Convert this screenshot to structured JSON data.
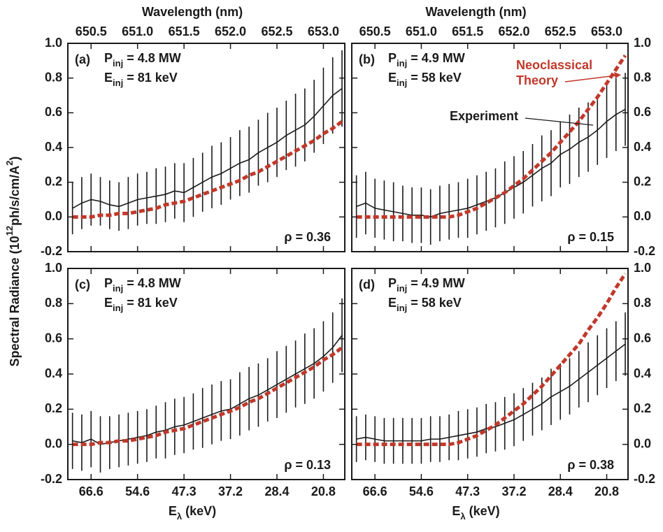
{
  "chart_data": [
    {
      "type": "line",
      "panel_label": "(a)",
      "ylabel": {
        "main": "Spectral Radiance (10",
        "sup1": "12",
        "mid": "ph/s/cm/A",
        "sup2": "2",
        "end": ")"
      },
      "xlabel": "Wavelength (nm)",
      "x_tick_side": "top",
      "y_tick_side": "left",
      "annotations": [
        {
          "main": "P",
          "sub": "inj",
          "rest": " = 4.8 MW"
        },
        {
          "main": "E",
          "sub": "inj",
          "rest": " = 81 keV"
        }
      ],
      "rho": "ρ = 0.36",
      "xlim": [
        650.25,
        653.23
      ],
      "ylim": [
        -0.2,
        1.0
      ],
      "xticks": [
        650.5,
        {
          "value": 651,
          "label": "651.0"
        },
        651.5,
        {
          "value": 652,
          "label": "652.0"
        },
        652.5,
        {
          "value": 653,
          "label": "653.0"
        }
      ],
      "yticks": [
        -0.2,
        {
          "value": 0,
          "label": "0.0"
        },
        0.2,
        0.4,
        0.6,
        0.8,
        {
          "value": 1,
          "label": "1.0"
        }
      ],
      "x": [
        650.3,
        650.4,
        650.5,
        650.6,
        650.7,
        650.8,
        650.9,
        651.0,
        651.1,
        651.2,
        651.3,
        651.4,
        651.5,
        651.6,
        651.7,
        651.8,
        651.9,
        652.0,
        652.1,
        652.2,
        652.3,
        652.4,
        652.5,
        652.6,
        652.7,
        652.8,
        652.9,
        653.0,
        653.1,
        653.2
      ],
      "series": [
        {
          "color": "#1a1a1a",
          "style": "solid",
          "values": [
            0.05,
            0.08,
            0.1,
            0.09,
            0.07,
            0.06,
            0.08,
            0.1,
            0.11,
            0.12,
            0.13,
            0.15,
            0.14,
            0.17,
            0.2,
            0.23,
            0.25,
            0.28,
            0.31,
            0.33,
            0.37,
            0.4,
            0.43,
            0.47,
            0.5,
            0.53,
            0.58,
            0.64,
            0.7,
            0.74
          ],
          "errors": [
            0.15,
            0.15,
            0.15,
            0.14,
            0.14,
            0.14,
            0.15,
            0.15,
            0.15,
            0.16,
            0.16,
            0.16,
            0.17,
            0.17,
            0.17,
            0.18,
            0.18,
            0.18,
            0.19,
            0.19,
            0.19,
            0.2,
            0.2,
            0.2,
            0.21,
            0.21,
            0.21,
            0.22,
            0.22,
            0.22
          ]
        },
        {
          "color": "#c0392b",
          "style": "dashed",
          "values": [
            0,
            0,
            0,
            0.01,
            0.01,
            0.02,
            0.02,
            0.03,
            0.04,
            0.05,
            0.07,
            0.08,
            0.09,
            0.11,
            0.13,
            0.15,
            0.17,
            0.19,
            0.21,
            0.24,
            0.26,
            0.29,
            0.32,
            0.35,
            0.38,
            0.41,
            0.44,
            0.48,
            0.51,
            0.55
          ]
        }
      ]
    },
    {
      "type": "line",
      "panel_label": "(b)",
      "xlabel": "Wavelength (nm)",
      "x_tick_side": "top",
      "y_tick_side": "right",
      "annotations": [
        {
          "main": "P",
          "sub": "inj",
          "rest": " = 4.9 MW"
        },
        {
          "main": "E",
          "sub": "inj",
          "rest": " = 58 keV"
        }
      ],
      "rho": "ρ = 0.15",
      "theory_label": [
        "Neoclassical",
        "Theory"
      ],
      "experiment_label": "Experiment",
      "xlim": [
        650.25,
        653.23
      ],
      "ylim": [
        -0.2,
        1.0
      ],
      "xticks": [
        650.5,
        {
          "value": 651,
          "label": "651.0"
        },
        651.5,
        {
          "value": 652,
          "label": "652.0"
        },
        652.5,
        {
          "value": 653,
          "label": "653.0"
        }
      ],
      "yticks": [
        -0.2,
        {
          "value": 0,
          "label": "0.0"
        },
        0.2,
        0.4,
        0.6,
        0.8,
        {
          "value": 1,
          "label": "1.0"
        }
      ],
      "x": [
        650.3,
        650.4,
        650.5,
        650.6,
        650.7,
        650.8,
        650.9,
        651.0,
        651.1,
        651.2,
        651.3,
        651.4,
        651.5,
        651.6,
        651.7,
        651.8,
        651.9,
        652.0,
        652.1,
        652.2,
        652.3,
        652.4,
        652.5,
        652.6,
        652.7,
        652.8,
        652.9,
        653.0,
        653.1,
        653.2
      ],
      "series": [
        {
          "color": "#1a1a1a",
          "style": "solid",
          "values": [
            0.06,
            0.08,
            0.05,
            0.04,
            0.03,
            0.02,
            0.01,
            0.01,
            0,
            0.02,
            0.03,
            0.04,
            0.05,
            0.07,
            0.09,
            0.11,
            0.14,
            0.17,
            0.2,
            0.24,
            0.28,
            0.31,
            0.36,
            0.39,
            0.43,
            0.46,
            0.5,
            0.55,
            0.59,
            0.62
          ],
          "errors": [
            0.18,
            0.18,
            0.17,
            0.17,
            0.17,
            0.16,
            0.16,
            0.16,
            0.16,
            0.16,
            0.16,
            0.16,
            0.17,
            0.17,
            0.17,
            0.17,
            0.18,
            0.18,
            0.18,
            0.18,
            0.19,
            0.19,
            0.19,
            0.2,
            0.2,
            0.2,
            0.2,
            0.21,
            0.21,
            0.21
          ]
        },
        {
          "color": "#c0392b",
          "style": "dashed",
          "values": [
            0,
            0,
            0,
            0,
            0,
            0,
            0,
            0,
            0,
            0,
            0,
            0.01,
            0.03,
            0.05,
            0.08,
            0.11,
            0.14,
            0.18,
            0.22,
            0.27,
            0.32,
            0.37,
            0.43,
            0.49,
            0.55,
            0.62,
            0.69,
            0.77,
            0.85,
            0.93
          ]
        }
      ]
    },
    {
      "type": "line",
      "panel_label": "(c)",
      "xlabel": {
        "main": "E",
        "sub": "λ",
        "rest": " (keV)"
      },
      "x_tick_side": "bottom",
      "y_tick_side": "left",
      "annotations": [
        {
          "main": "P",
          "sub": "inj",
          "rest": " = 4.8 MW"
        },
        {
          "main": "E",
          "sub": "inj",
          "rest": " = 81 keV"
        }
      ],
      "rho": "ρ = 0.13",
      "xlim": [
        650.25,
        653.23
      ],
      "ylim": [
        -0.2,
        1.0
      ],
      "xticks": [
        {
          "value": 650.5,
          "label": "66.6"
        },
        {
          "value": 651,
          "label": "54.6"
        },
        {
          "value": 651.5,
          "label": "47.3"
        },
        {
          "value": 652,
          "label": "37.2"
        },
        {
          "value": 652.5,
          "label": "28.4"
        },
        {
          "value": 653,
          "label": "20.8"
        }
      ],
      "yticks": [
        -0.2,
        {
          "value": 0,
          "label": "0.0"
        },
        0.2,
        0.4,
        0.6,
        0.8,
        {
          "value": 1,
          "label": "1.0"
        }
      ],
      "x": [
        650.3,
        650.4,
        650.5,
        650.6,
        650.7,
        650.8,
        650.9,
        651.0,
        651.1,
        651.2,
        651.3,
        651.4,
        651.5,
        651.6,
        651.7,
        651.8,
        651.9,
        652.0,
        652.1,
        652.2,
        652.3,
        652.4,
        652.5,
        652.6,
        652.7,
        652.8,
        652.9,
        653.0,
        653.1,
        653.2
      ],
      "series": [
        {
          "color": "#1a1a1a",
          "style": "solid",
          "values": [
            0.02,
            0.01,
            0.03,
            0,
            0.01,
            0.02,
            0.03,
            0.04,
            0.05,
            0.07,
            0.08,
            0.1,
            0.11,
            0.13,
            0.15,
            0.17,
            0.19,
            0.2,
            0.23,
            0.26,
            0.28,
            0.31,
            0.34,
            0.37,
            0.4,
            0.43,
            0.46,
            0.5,
            0.55,
            0.62
          ],
          "errors": [
            0.16,
            0.16,
            0.16,
            0.16,
            0.15,
            0.15,
            0.15,
            0.15,
            0.15,
            0.15,
            0.16,
            0.16,
            0.16,
            0.16,
            0.17,
            0.17,
            0.17,
            0.17,
            0.18,
            0.18,
            0.18,
            0.18,
            0.19,
            0.19,
            0.19,
            0.2,
            0.2,
            0.2,
            0.2,
            0.21
          ]
        },
        {
          "color": "#c0392b",
          "style": "dashed",
          "values": [
            0,
            0,
            0,
            0.01,
            0.01,
            0.02,
            0.02,
            0.03,
            0.04,
            0.05,
            0.07,
            0.08,
            0.09,
            0.11,
            0.13,
            0.15,
            0.17,
            0.19,
            0.21,
            0.24,
            0.26,
            0.29,
            0.32,
            0.35,
            0.38,
            0.41,
            0.44,
            0.48,
            0.51,
            0.55
          ]
        }
      ]
    },
    {
      "type": "line",
      "panel_label": "(d)",
      "xlabel": {
        "main": "E",
        "sub": "λ",
        "rest": " (keV)"
      },
      "x_tick_side": "bottom",
      "y_tick_side": "right",
      "annotations": [
        {
          "main": "P",
          "sub": "inj",
          "rest": " = 4.9 MW"
        },
        {
          "main": "E",
          "sub": "inj",
          "rest": " = 58 keV"
        }
      ],
      "rho": "ρ = 0.38",
      "xlim": [
        650.25,
        653.23
      ],
      "ylim": [
        -0.2,
        1.0
      ],
      "xticks": [
        {
          "value": 650.5,
          "label": "66.6"
        },
        {
          "value": 651,
          "label": "54.6"
        },
        {
          "value": 651.5,
          "label": "47.3"
        },
        {
          "value": 652,
          "label": "37.2"
        },
        {
          "value": 652.5,
          "label": "28.4"
        },
        {
          "value": 653,
          "label": "20.8"
        }
      ],
      "yticks": [
        -0.2,
        {
          "value": 0,
          "label": "0.0"
        },
        0.2,
        0.4,
        0.6,
        0.8,
        {
          "value": 1,
          "label": "1.0"
        }
      ],
      "x": [
        650.3,
        650.4,
        650.5,
        650.6,
        650.7,
        650.8,
        650.9,
        651.0,
        651.1,
        651.2,
        651.3,
        651.4,
        651.5,
        651.6,
        651.7,
        651.8,
        651.9,
        652.0,
        652.1,
        652.2,
        652.3,
        652.4,
        652.5,
        652.6,
        652.7,
        652.8,
        652.9,
        653.0,
        653.1,
        653.2
      ],
      "series": [
        {
          "color": "#1a1a1a",
          "style": "solid",
          "values": [
            0.03,
            0.04,
            0.03,
            0.02,
            0.02,
            0.02,
            0.02,
            0.02,
            0.03,
            0.03,
            0.04,
            0.05,
            0.06,
            0.07,
            0.09,
            0.1,
            0.12,
            0.14,
            0.17,
            0.2,
            0.23,
            0.27,
            0.3,
            0.33,
            0.37,
            0.41,
            0.45,
            0.49,
            0.53,
            0.57
          ],
          "errors": [
            0.13,
            0.13,
            0.13,
            0.13,
            0.13,
            0.13,
            0.13,
            0.13,
            0.13,
            0.13,
            0.13,
            0.14,
            0.14,
            0.14,
            0.14,
            0.14,
            0.15,
            0.15,
            0.15,
            0.15,
            0.15,
            0.16,
            0.16,
            0.16,
            0.16,
            0.17,
            0.17,
            0.17,
            0.17,
            0.18
          ]
        },
        {
          "color": "#c0392b",
          "style": "dashed",
          "values": [
            0,
            0,
            0,
            0,
            0,
            0,
            0,
            0,
            0,
            0,
            0,
            0.01,
            0.03,
            0.05,
            0.08,
            0.11,
            0.15,
            0.19,
            0.23,
            0.28,
            0.33,
            0.39,
            0.45,
            0.51,
            0.57,
            0.65,
            0.72,
            0.8,
            0.89,
            0.97
          ]
        }
      ]
    }
  ]
}
